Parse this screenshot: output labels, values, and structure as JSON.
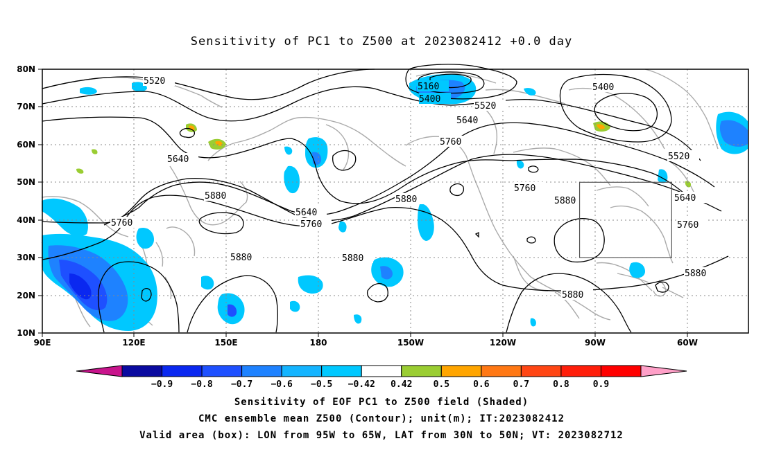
{
  "title": "Sensitivity of PC1 to Z500 at 2023082412 +0.0 day",
  "axes": {
    "lat_labels": [
      "80N",
      "70N",
      "60N",
      "50N",
      "40N",
      "30N",
      "20N",
      "10N"
    ],
    "lon_labels": [
      "90E",
      "120E",
      "150E",
      "180",
      "150W",
      "120W",
      "90W",
      "60W"
    ]
  },
  "contour_labels": [
    {
      "id": "c5520-w",
      "text": "5520"
    },
    {
      "id": "c5160",
      "text": "5160"
    },
    {
      "id": "c5400-c",
      "text": "5400"
    },
    {
      "id": "c5520-c",
      "text": "5520"
    },
    {
      "id": "c5640-c",
      "text": "5640"
    },
    {
      "id": "c5400-e",
      "text": "5400"
    },
    {
      "id": "c5520-e",
      "text": "5520"
    },
    {
      "id": "c5760-c",
      "text": "5760"
    },
    {
      "id": "c5640-w",
      "text": "5640"
    },
    {
      "id": "c5880-w",
      "text": "5880"
    },
    {
      "id": "c5760-w",
      "text": "5760"
    },
    {
      "id": "c5640-m",
      "text": "5640"
    },
    {
      "id": "c5760-m",
      "text": "5760"
    },
    {
      "id": "c5880-c",
      "text": "5880"
    },
    {
      "id": "c5760-e",
      "text": "5760"
    },
    {
      "id": "c5880-e",
      "text": "5880"
    },
    {
      "id": "c5640-e2",
      "text": "5640"
    },
    {
      "id": "c5760-e2",
      "text": "5760"
    },
    {
      "id": "c5880-sw",
      "text": "5880"
    },
    {
      "id": "c5880-s",
      "text": "5880"
    },
    {
      "id": "c5880-se",
      "text": "5880"
    },
    {
      "id": "c5880-far",
      "text": "5880"
    }
  ],
  "colorbar": {
    "colors": [
      "#c8148c",
      "#0a0aa0",
      "#0a28f0",
      "#1e50ff",
      "#1e82ff",
      "#14b4ff",
      "#00c8ff",
      "#ffffff",
      "#9acd32",
      "#ffa500",
      "#ff7814",
      "#ff4614",
      "#ff1e0a",
      "#ff0000",
      "#ffa0c8"
    ],
    "labels": [
      "−0.9",
      "−0.8",
      "−0.7",
      "−0.6",
      "−0.5",
      "−0.42",
      "0.42",
      "0.5",
      "0.6",
      "0.7",
      "0.8",
      "0.9"
    ]
  },
  "valid_area": {
    "lon_min": -95,
    "lon_max": -65,
    "lat_min": 30,
    "lat_max": 50
  },
  "captions": [
    "Sensitivity of EOF PC1 to Z500 field (Shaded)",
    "CMC ensemble mean Z500 (Contour); unit(m); IT:2023082412",
    "Valid area (box): LON from 95W to 65W, LAT from 30N to 50N; VT: 2023082712"
  ]
}
